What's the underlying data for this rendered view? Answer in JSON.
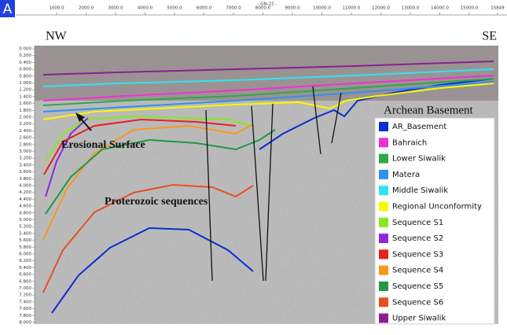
{
  "panel_label": "A",
  "line_name": "- GN-22 -",
  "top_axis": {
    "labels": [
      "1000.0",
      "2000.0",
      "3000.0",
      "4000.0",
      "5000.0",
      "6000.0",
      "7000.0",
      "8000.0",
      "9000.0",
      "10000.0",
      "11000.0",
      "12000.0",
      "13000.0",
      "14000.0",
      "15000.0",
      "15849"
    ]
  },
  "left_axis": {
    "labels": [
      "0.000",
      "0.200",
      "0.400",
      "0.600",
      "0.800",
      "1.000",
      "1.200",
      "1.400",
      "1.600",
      "1.800",
      "2.000",
      "2.200",
      "2.400",
      "2.600",
      "2.800",
      "3.000",
      "3.200",
      "3.400",
      "3.600",
      "3.800",
      "4.000",
      "4.200",
      "4.400",
      "4.600",
      "4.800",
      "5.000",
      "5.200",
      "5.400",
      "5.600",
      "5.800",
      "6.000",
      "6.200",
      "6.400",
      "6.600",
      "6.800",
      "7.000",
      "7.200",
      "7.400",
      "7.600",
      "7.800",
      "8.000"
    ]
  },
  "directions": {
    "left": "NW",
    "right": "SE"
  },
  "annotations": [
    "Archean Basement",
    "Erosional Surface",
    "Proterozoic sequences"
  ],
  "legend": {
    "items": [
      {
        "name": "AR_Basement",
        "color": "#0a2fd0"
      },
      {
        "name": "Bahraich",
        "color": "#f030d0"
      },
      {
        "name": "Lower Siwalik",
        "color": "#30a848"
      },
      {
        "name": "Matera",
        "color": "#3090f0"
      },
      {
        "name": "Middle Siwalik",
        "color": "#30e4f0"
      },
      {
        "name": "Regional Unconformity",
        "color": "#f8f800"
      },
      {
        "name": "Sequence S1",
        "color": "#88e820"
      },
      {
        "name": "Sequence S2",
        "color": "#8a28e0"
      },
      {
        "name": "Sequence S3",
        "color": "#e82020"
      },
      {
        "name": "Sequence S4",
        "color": "#f89820"
      },
      {
        "name": "Sequence S5",
        "color": "#209848"
      },
      {
        "name": "Sequence S6",
        "color": "#e85020"
      },
      {
        "name": "Upper Siwalik",
        "color": "#882090"
      }
    ]
  }
}
